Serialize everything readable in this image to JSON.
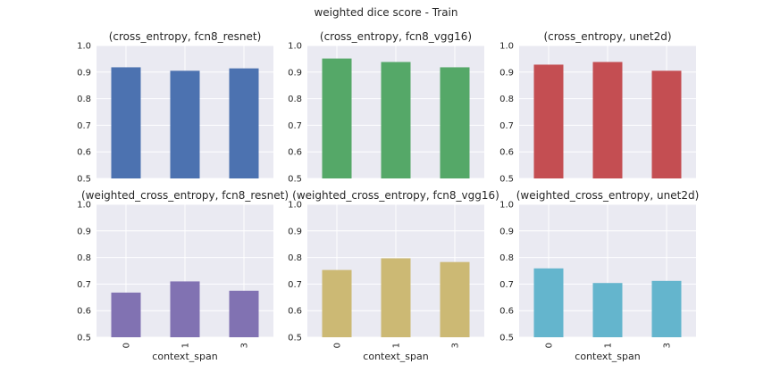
{
  "suptitle": "weighted dice score - Train",
  "chart_data": [
    {
      "type": "bar",
      "title": "(cross_entropy, fcn8_resnet)",
      "categories": [
        "0",
        "1",
        "3"
      ],
      "values": [
        0.918,
        0.905,
        0.914
      ],
      "xlabel": "",
      "ylim": [
        0.5,
        1.0
      ],
      "yticks": [
        "0.5",
        "0.6",
        "0.7",
        "0.8",
        "0.9",
        "1.0"
      ],
      "color": "#4c72b0",
      "grid": true
    },
    {
      "type": "bar",
      "title": "(cross_entropy, fcn8_vgg16)",
      "categories": [
        "0",
        "1",
        "3"
      ],
      "values": [
        0.951,
        0.938,
        0.918
      ],
      "xlabel": "",
      "ylim": [
        0.5,
        1.0
      ],
      "yticks": [
        "0.5",
        "0.6",
        "0.7",
        "0.8",
        "0.9",
        "1.0"
      ],
      "color": "#55a868",
      "grid": true
    },
    {
      "type": "bar",
      "title": "(cross_entropy, unet2d)",
      "categories": [
        "0",
        "1",
        "3"
      ],
      "values": [
        0.928,
        0.938,
        0.905
      ],
      "xlabel": "",
      "ylim": [
        0.5,
        1.0
      ],
      "yticks": [
        "0.5",
        "0.6",
        "0.7",
        "0.8",
        "0.9",
        "1.0"
      ],
      "color": "#c44e52",
      "grid": true
    },
    {
      "type": "bar",
      "title": "(weighted_cross_entropy, fcn8_resnet)",
      "categories": [
        "0",
        "1",
        "3"
      ],
      "values": [
        0.668,
        0.71,
        0.675
      ],
      "xlabel": "context_span",
      "ylim": [
        0.5,
        1.0
      ],
      "yticks": [
        "0.5",
        "0.6",
        "0.7",
        "0.8",
        "0.9",
        "1.0"
      ],
      "color": "#8172b2",
      "grid": true
    },
    {
      "type": "bar",
      "title": "(weighted_cross_entropy, fcn8_vgg16)",
      "categories": [
        "0",
        "1",
        "3"
      ],
      "values": [
        0.753,
        0.797,
        0.783
      ],
      "xlabel": "context_span",
      "ylim": [
        0.5,
        1.0
      ],
      "yticks": [
        "0.5",
        "0.6",
        "0.7",
        "0.8",
        "0.9",
        "1.0"
      ],
      "color": "#ccb974",
      "grid": true
    },
    {
      "type": "bar",
      "title": "(weighted_cross_entropy, unet2d)",
      "categories": [
        "0",
        "1",
        "3"
      ],
      "values": [
        0.759,
        0.704,
        0.712
      ],
      "xlabel": "context_span",
      "ylim": [
        0.5,
        1.0
      ],
      "yticks": [
        "0.5",
        "0.6",
        "0.7",
        "0.8",
        "0.9",
        "1.0"
      ],
      "color": "#64b5cd",
      "grid": true
    }
  ]
}
